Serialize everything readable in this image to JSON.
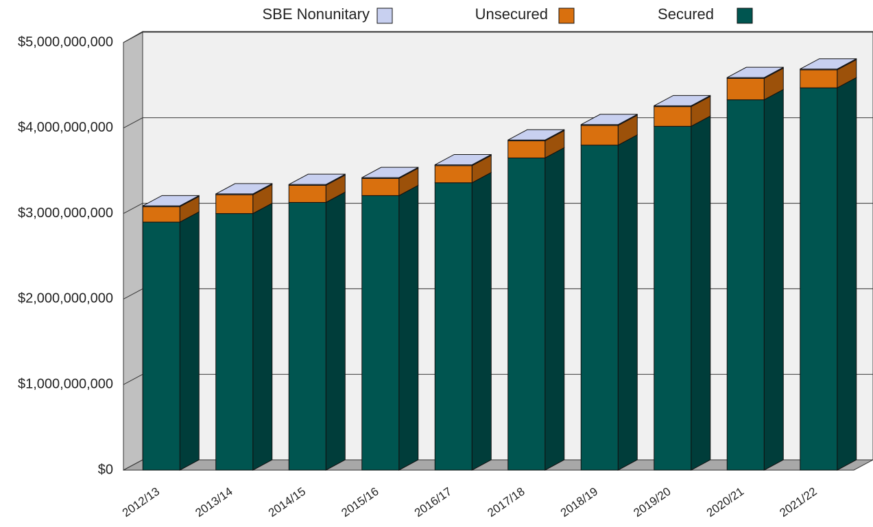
{
  "chart_data": {
    "type": "bar3d_stacked",
    "categories": [
      "2012/13",
      "2013/14",
      "2014/15",
      "2015/16",
      "2016/17",
      "2017/18",
      "2018/19",
      "2019/20",
      "2020/21",
      "2021/22"
    ],
    "series": [
      {
        "name": "Secured",
        "color": "#005550",
        "values": [
          2900000000,
          3000000000,
          3130000000,
          3210000000,
          3360000000,
          3650000000,
          3800000000,
          4020000000,
          4330000000,
          4470000000
        ]
      },
      {
        "name": "Unsecured",
        "color": "#d9700e",
        "values": [
          180000000,
          220000000,
          200000000,
          200000000,
          200000000,
          200000000,
          230000000,
          230000000,
          250000000,
          210000000
        ]
      },
      {
        "name": "SBE Nonunitary",
        "color": "#c8d0f0",
        "values": [
          10000000,
          10000000,
          10000000,
          10000000,
          10000000,
          10000000,
          10000000,
          10000000,
          10000000,
          10000000
        ]
      }
    ],
    "ylim": [
      0,
      5000000000
    ],
    "yticks": [
      {
        "value": 0,
        "label": "$0"
      },
      {
        "value": 1000000000,
        "label": "$1,000,000,000"
      },
      {
        "value": 2000000000,
        "label": "$2,000,000,000"
      },
      {
        "value": 3000000000,
        "label": "$3,000,000,000"
      },
      {
        "value": 4000000000,
        "label": "$4,000,000,000"
      },
      {
        "value": 5000000000,
        "label": "$5,000,000,000"
      }
    ],
    "grid": true
  }
}
